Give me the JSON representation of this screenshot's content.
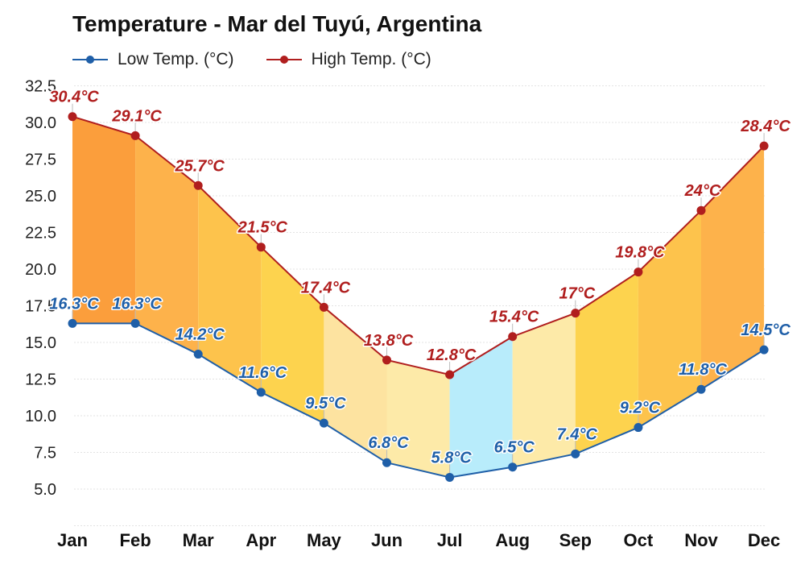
{
  "title": "Temperature - Mar del Tuyú, Argentina",
  "colors": {
    "low": "#1f5fa8",
    "high": "#b01e1e"
  },
  "chart_data": {
    "type": "line",
    "title": "Temperature - Mar del Tuyú, Argentina",
    "categories": [
      "Jan",
      "Feb",
      "Mar",
      "Apr",
      "May",
      "Jun",
      "Jul",
      "Aug",
      "Sep",
      "Oct",
      "Nov",
      "Dec"
    ],
    "series": [
      {
        "name": "Low Temp. (°C)",
        "values": [
          16.3,
          16.3,
          14.2,
          11.6,
          9.5,
          6.8,
          5.8,
          6.5,
          7.4,
          9.2,
          11.8,
          14.5
        ],
        "labels": [
          "16.3°C",
          "16.3°C",
          "14.2°C",
          "11.6°C",
          "9.5°C",
          "6.8°C",
          "5.8°C",
          "6.5°C",
          "7.4°C",
          "9.2°C",
          "11.8°C",
          "14.5°C"
        ]
      },
      {
        "name": "High Temp. (°C)",
        "values": [
          30.4,
          29.1,
          25.7,
          21.5,
          17.4,
          13.8,
          12.8,
          15.4,
          17.0,
          19.8,
          24.0,
          28.4
        ],
        "labels": [
          "30.4°C",
          "29.1°C",
          "25.7°C",
          "21.5°C",
          "17.4°C",
          "13.8°C",
          "12.8°C",
          "15.4°C",
          "17°C",
          "19.8°C",
          "24°C",
          "28.4°C"
        ]
      }
    ],
    "yticks": [
      "5.0",
      "7.5",
      "10.0",
      "12.5",
      "15.0",
      "17.5",
      "20.0",
      "22.5",
      "25.0",
      "27.5",
      "30.0",
      "32.5"
    ],
    "ylim": [
      2.5,
      32.5
    ],
    "grid": true,
    "legend_position": "top-left",
    "band_colors": [
      "#fb9e3c",
      "#fdb24b",
      "#fdc34c",
      "#fdd34e",
      "#fde3a0",
      "#fdeaa8",
      "#b8ecfb",
      "#fdeaa8",
      "#fdd34e",
      "#fdc34c",
      "#fdb24b",
      "#fb9e3c"
    ]
  }
}
